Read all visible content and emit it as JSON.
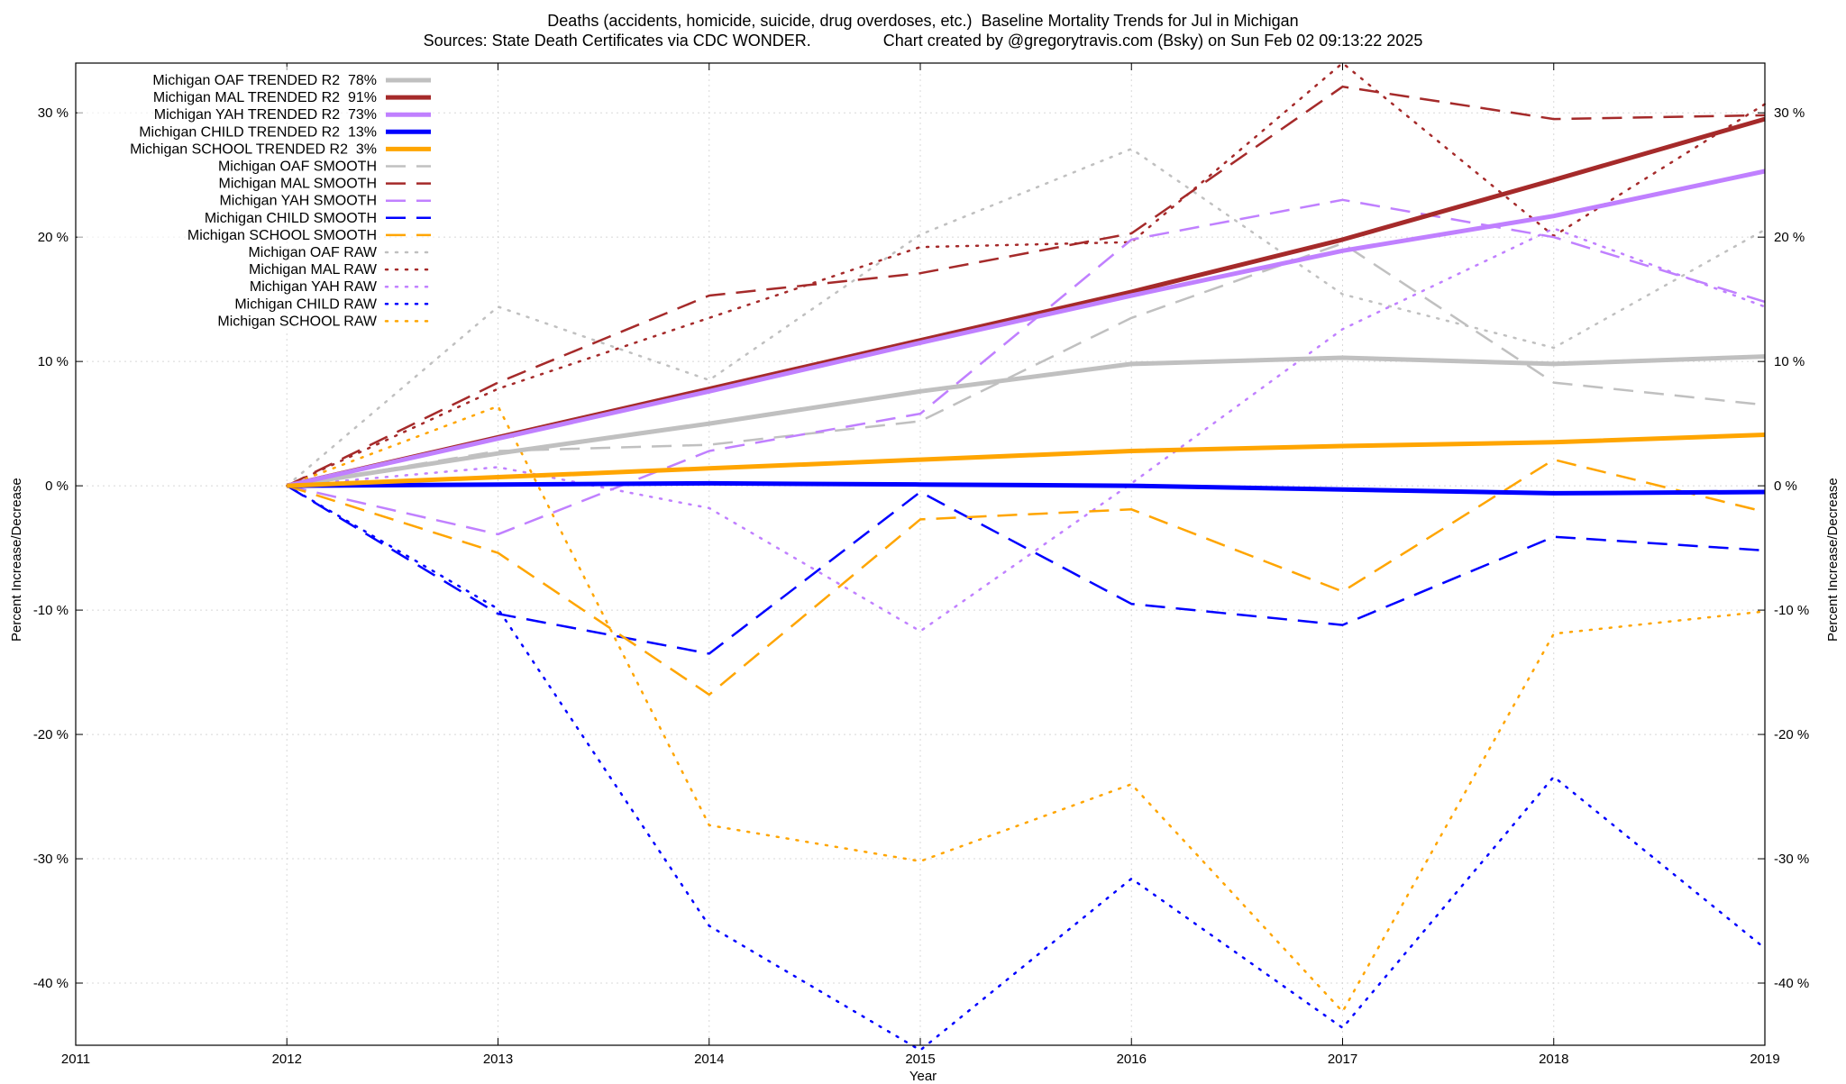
{
  "chart_data": {
    "type": "line",
    "title": "Deaths (accidents, homicide, suicide, drug overdoses, etc.)  Baseline Mortality Trends for Jul in Michigan",
    "subtitle": "Sources: State Death Certificates via CDC WONDER.                Chart created by @gregorytravis.com (Bsky) on Sun Feb 02 09:13:22 2025",
    "xlabel": "Year",
    "ylabel": "Percent Increase/Decrease",
    "y2label": "Percent Increase/Decrease",
    "xlim": [
      2011,
      2019
    ],
    "ylim": [
      -45,
      34
    ],
    "x_ticks": [
      2011,
      2012,
      2013,
      2014,
      2015,
      2016,
      2017,
      2018,
      2019
    ],
    "y_ticks": [
      30,
      20,
      10,
      0,
      -10,
      -20,
      -30,
      -40
    ],
    "y_tick_labels": [
      "30 %",
      "20 %",
      "10 %",
      "0 %",
      "-10 %",
      "-20 %",
      "-30 %",
      "-40 %"
    ],
    "grid": true,
    "legend_position": "top-left",
    "series": [
      {
        "name": "Michigan OAF TRENDED R2  78%",
        "color": "#c0c0c0",
        "style": "solid",
        "width": 5,
        "x": [
          2012,
          2013,
          2014,
          2015,
          2016,
          2017,
          2018,
          2019
        ],
        "values": [
          0,
          2.6,
          5.0,
          7.6,
          9.8,
          10.3,
          9.8,
          10.4
        ]
      },
      {
        "name": "Michigan MAL TRENDED R2  91%",
        "color": "#a52a2a",
        "style": "solid",
        "width": 5,
        "x": [
          2012,
          2013,
          2014,
          2015,
          2016,
          2017,
          2018,
          2019
        ],
        "values": [
          0,
          3.9,
          7.8,
          11.7,
          15.6,
          19.8,
          24.6,
          29.5
        ]
      },
      {
        "name": "Michigan YAH TRENDED R2  73%",
        "color": "#c080ff",
        "style": "solid",
        "width": 5,
        "x": [
          2012,
          2013,
          2014,
          2015,
          2016,
          2017,
          2018,
          2019
        ],
        "values": [
          0,
          3.8,
          7.6,
          11.5,
          15.3,
          18.9,
          21.7,
          25.3
        ]
      },
      {
        "name": "Michigan CHILD TRENDED R2  13%",
        "color": "#0000ff",
        "style": "solid",
        "width": 5,
        "x": [
          2012,
          2013,
          2014,
          2015,
          2016,
          2017,
          2018,
          2019
        ],
        "values": [
          0,
          0.1,
          0.2,
          0.1,
          0,
          -0.3,
          -0.6,
          -0.5
        ]
      },
      {
        "name": "Michigan SCHOOL TRENDED R2  3%",
        "color": "#ffa500",
        "style": "solid",
        "width": 5,
        "x": [
          2012,
          2013,
          2014,
          2015,
          2016,
          2017,
          2018,
          2019
        ],
        "values": [
          0,
          0.7,
          1.4,
          2.1,
          2.8,
          3.2,
          3.5,
          4.1
        ]
      },
      {
        "name": "Michigan OAF SMOOTH",
        "color": "#c0c0c0",
        "style": "dashed",
        "width": 2.5,
        "x": [
          2012,
          2013,
          2014,
          2015,
          2016,
          2017,
          2018,
          2019
        ],
        "values": [
          0,
          2.8,
          3.3,
          5.2,
          13.5,
          19.5,
          8.3,
          6.5
        ]
      },
      {
        "name": "Michigan MAL SMOOTH",
        "color": "#a52a2a",
        "style": "dashed",
        "width": 2.5,
        "x": [
          2012,
          2013,
          2014,
          2015,
          2016,
          2017,
          2018,
          2019
        ],
        "values": [
          0,
          8.3,
          15.3,
          17.1,
          20.3,
          32.1,
          29.5,
          29.8
        ]
      },
      {
        "name": "Michigan YAH SMOOTH",
        "color": "#c080ff",
        "style": "dashed",
        "width": 2.5,
        "x": [
          2012,
          2013,
          2014,
          2015,
          2016,
          2017,
          2018,
          2019
        ],
        "values": [
          0,
          -3.9,
          2.8,
          5.8,
          19.8,
          23.0,
          20.0,
          14.8
        ]
      },
      {
        "name": "Michigan CHILD SMOOTH",
        "color": "#0000ff",
        "style": "dashed",
        "width": 2.5,
        "x": [
          2012,
          2013,
          2014,
          2015,
          2016,
          2017,
          2018,
          2019
        ],
        "values": [
          0,
          -10.3,
          -13.5,
          -0.5,
          -9.5,
          -11.2,
          -4.1,
          -5.2
        ]
      },
      {
        "name": "Michigan SCHOOL SMOOTH",
        "color": "#ffa500",
        "style": "dashed",
        "width": 2.5,
        "x": [
          2012,
          2013,
          2014,
          2015,
          2016,
          2017,
          2018,
          2019
        ],
        "values": [
          0,
          -5.4,
          -16.8,
          -2.7,
          -1.9,
          -8.5,
          2.1,
          -2.1
        ]
      },
      {
        "name": "Michigan OAF RAW",
        "color": "#c0c0c0",
        "style": "dotted",
        "width": 2.5,
        "x": [
          2012,
          2013,
          2014,
          2015,
          2016,
          2017,
          2018,
          2019
        ],
        "values": [
          0,
          14.4,
          8.5,
          20.2,
          27.1,
          15.4,
          11.1,
          20.6
        ]
      },
      {
        "name": "Michigan MAL RAW",
        "color": "#a52a2a",
        "style": "dotted",
        "width": 2.5,
        "x": [
          2012,
          2013,
          2014,
          2015,
          2016,
          2017,
          2018,
          2019
        ],
        "values": [
          0,
          7.8,
          13.5,
          19.2,
          19.6,
          34.0,
          20.1,
          30.7
        ]
      },
      {
        "name": "Michigan YAH RAW",
        "color": "#c080ff",
        "style": "dotted",
        "width": 2.5,
        "x": [
          2012,
          2013,
          2014,
          2015,
          2016,
          2017,
          2018,
          2019
        ],
        "values": [
          0,
          1.5,
          -1.8,
          -11.7,
          0.2,
          12.6,
          20.7,
          14.4
        ]
      },
      {
        "name": "Michigan CHILD RAW",
        "color": "#0000ff",
        "style": "dotted",
        "width": 2.5,
        "x": [
          2012,
          2013,
          2014,
          2015,
          2016,
          2017,
          2018,
          2019
        ],
        "values": [
          0,
          -9.9,
          -35.4,
          -45.4,
          -31.6,
          -43.6,
          -23.4,
          -37.2
        ]
      },
      {
        "name": "Michigan SCHOOL RAW",
        "color": "#ffa500",
        "style": "dotted",
        "width": 2.5,
        "x": [
          2012,
          2013,
          2014,
          2015,
          2016,
          2017,
          2018,
          2019
        ],
        "values": [
          0,
          6.4,
          -27.3,
          -30.2,
          -24.0,
          -42.3,
          -11.9,
          -10.1
        ]
      }
    ]
  }
}
